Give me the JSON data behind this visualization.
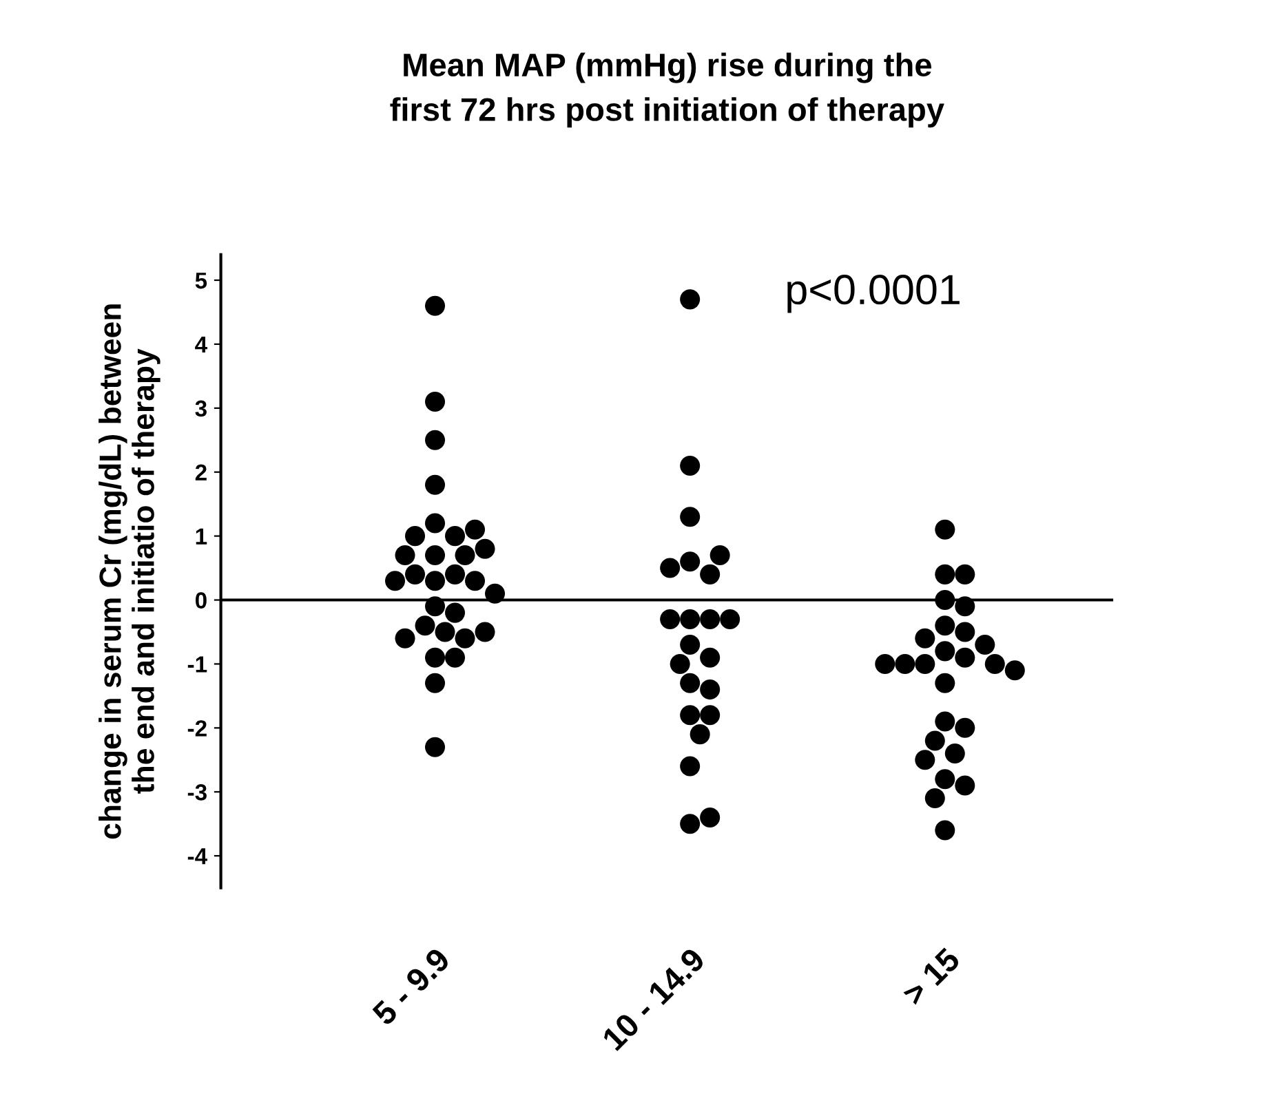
{
  "chart_data": {
    "type": "scatter",
    "title": "Mean MAP (mmHg) rise during the\nfirst 72 hrs post initiation of therapy",
    "ylabel": "change in serum Cr (mg/dL) between\nthe end and initiatio of therapy",
    "categories": [
      "5 - 9.9",
      "10 - 14.9",
      "> 15"
    ],
    "series": [
      {
        "color": "#000000",
        "x": [
          "5 - 9.9",
          "5 - 9.9",
          "5 - 9.9",
          "5 - 9.9",
          "5 - 9.9",
          "5 - 9.9",
          "5 - 9.9",
          "5 - 9.9",
          "5 - 9.9",
          "5 - 9.9",
          "5 - 9.9",
          "5 - 9.9",
          "5 - 9.9",
          "5 - 9.9",
          "5 - 9.9",
          "5 - 9.9",
          "5 - 9.9",
          "5 - 9.9",
          "5 - 9.9",
          "5 - 9.9",
          "5 - 9.9",
          "5 - 9.9",
          "5 - 9.9",
          "5 - 9.9",
          "5 - 9.9",
          "5 - 9.9",
          "5 - 9.9",
          "5 - 9.9",
          "5 - 9.9"
        ],
        "values": [
          4.6,
          3.1,
          2.5,
          1.8,
          1.2,
          1.0,
          1.0,
          1.1,
          0.7,
          0.7,
          0.7,
          0.8,
          0.3,
          0.4,
          0.4,
          0.3,
          0.3,
          0.1,
          -0.1,
          -0.2,
          -0.4,
          -0.5,
          -0.6,
          -0.6,
          -0.5,
          -0.9,
          -0.9,
          -1.3,
          -2.3
        ]
      },
      {
        "color": "#000000",
        "x": [
          "10 - 14.9",
          "10 - 14.9",
          "10 - 14.9",
          "10 - 14.9",
          "10 - 14.9",
          "10 - 14.9",
          "10 - 14.9",
          "10 - 14.9",
          "10 - 14.9",
          "10 - 14.9",
          "10 - 14.9",
          "10 - 14.9",
          "10 - 14.9",
          "10 - 14.9",
          "10 - 14.9",
          "10 - 14.9",
          "10 - 14.9",
          "10 - 14.9",
          "10 - 14.9",
          "10 - 14.9",
          "10 - 14.9",
          "10 - 14.9"
        ],
        "values": [
          4.7,
          2.1,
          1.3,
          0.6,
          0.4,
          0.5,
          0.7,
          -0.3,
          -0.3,
          -0.3,
          -0.3,
          -0.7,
          -0.9,
          -1.0,
          -1.3,
          -1.4,
          -1.8,
          -1.8,
          -2.1,
          -2.6,
          -3.5,
          -3.4
        ]
      },
      {
        "color": "#000000",
        "x": [
          "> 15",
          "> 15",
          "> 15",
          "> 15",
          "> 15",
          "> 15",
          "> 15",
          "> 15",
          "> 15",
          "> 15",
          "> 15",
          "> 15",
          "> 15",
          "> 15",
          "> 15",
          "> 15",
          "> 15",
          "> 15",
          "> 15",
          "> 15",
          "> 15",
          "> 15",
          "> 15",
          "> 15",
          "> 15",
          "> 15"
        ],
        "values": [
          1.1,
          0.4,
          0.4,
          0.0,
          -0.1,
          -0.4,
          -0.5,
          -0.6,
          -0.7,
          -0.8,
          -0.9,
          -1.0,
          -1.0,
          -1.0,
          -1.0,
          -1.1,
          -1.3,
          -1.9,
          -2.0,
          -2.2,
          -2.4,
          -2.5,
          -2.8,
          -2.9,
          -3.1,
          -3.6
        ]
      }
    ],
    "ylim": [
      -4.5,
      5.4
    ],
    "yticks": [
      {
        "value": -4,
        "label": "-4"
      },
      {
        "value": -3,
        "label": "-3"
      },
      {
        "value": -2,
        "label": "-2"
      },
      {
        "value": -1,
        "label": "-1"
      },
      0,
      1,
      2,
      3,
      4,
      5
    ],
    "ref_lines": [
      {
        "axis": "y",
        "value": 0,
        "color": "#000000"
      }
    ],
    "annotations": [
      {
        "text": "p<0.0001"
      }
    ],
    "marker": "circle",
    "grid": false,
    "legend": false
  }
}
